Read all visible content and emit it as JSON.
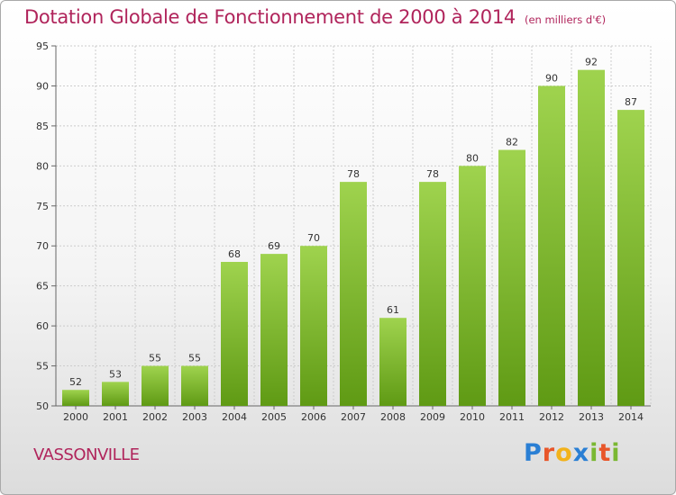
{
  "header": {
    "title": "Dotation Globale de Fonctionnement de 2000 à 2014",
    "unit": "(en milliers d'€)"
  },
  "footer": {
    "commune": "VASSONVILLE"
  },
  "logo": {
    "letters": [
      "P",
      "r",
      "o",
      "x",
      "i",
      "t",
      "i"
    ],
    "colors": [
      "#2a7fd4",
      "#e8562a",
      "#f2b21b",
      "#2a7fd4",
      "#7ab832",
      "#e8562a",
      "#7ab832"
    ]
  },
  "colors": {
    "bar": "#8cc63f",
    "bar_dark": "#5f9a14",
    "grid": "#cccccc",
    "title": "#b0245b"
  },
  "chart_data": {
    "type": "bar",
    "title": "Dotation Globale de Fonctionnement de 2000 à 2014",
    "subtitle": "(en milliers d'€)",
    "categories": [
      "2000",
      "2001",
      "2002",
      "2003",
      "2004",
      "2005",
      "2006",
      "2007",
      "2008",
      "2009",
      "2010",
      "2011",
      "2012",
      "2013",
      "2014"
    ],
    "values": [
      52,
      53,
      55,
      55,
      68,
      69,
      70,
      78,
      61,
      78,
      80,
      82,
      90,
      92,
      87
    ],
    "ylim": [
      50,
      95
    ],
    "yticks": [
      50,
      55,
      60,
      65,
      70,
      75,
      80,
      85,
      90,
      95
    ],
    "grid": true,
    "xlabel": "",
    "ylabel": ""
  }
}
